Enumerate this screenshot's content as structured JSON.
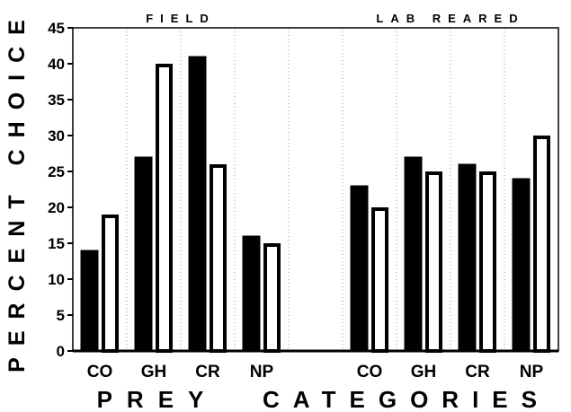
{
  "chart_data": {
    "type": "bar",
    "ylabel": "PERCENT CHOICE",
    "xlabel_parts": [
      "PREY",
      "CATEGORIES"
    ],
    "ylim": [
      0,
      45
    ],
    "yticks": [
      0,
      5,
      10,
      15,
      20,
      25,
      30,
      35,
      40,
      45
    ],
    "grid": "dotted vertical separators",
    "groups": [
      {
        "title": "FIELD",
        "categories": [
          "CO",
          "GH",
          "CR",
          "NP"
        ],
        "series": [
          {
            "fill": "#000000",
            "values": [
              14,
              27,
              41,
              16
            ]
          },
          {
            "fill": "#ffffff",
            "values": [
              19,
              40,
              26,
              15
            ]
          }
        ]
      },
      {
        "title": "LAB REARED",
        "categories": [
          "CO",
          "GH",
          "CR",
          "NP"
        ],
        "series": [
          {
            "fill": "#000000",
            "values": [
              23,
              27,
              26,
              24
            ]
          },
          {
            "fill": "#ffffff",
            "values": [
              20,
              25,
              25,
              30
            ]
          }
        ]
      }
    ]
  }
}
